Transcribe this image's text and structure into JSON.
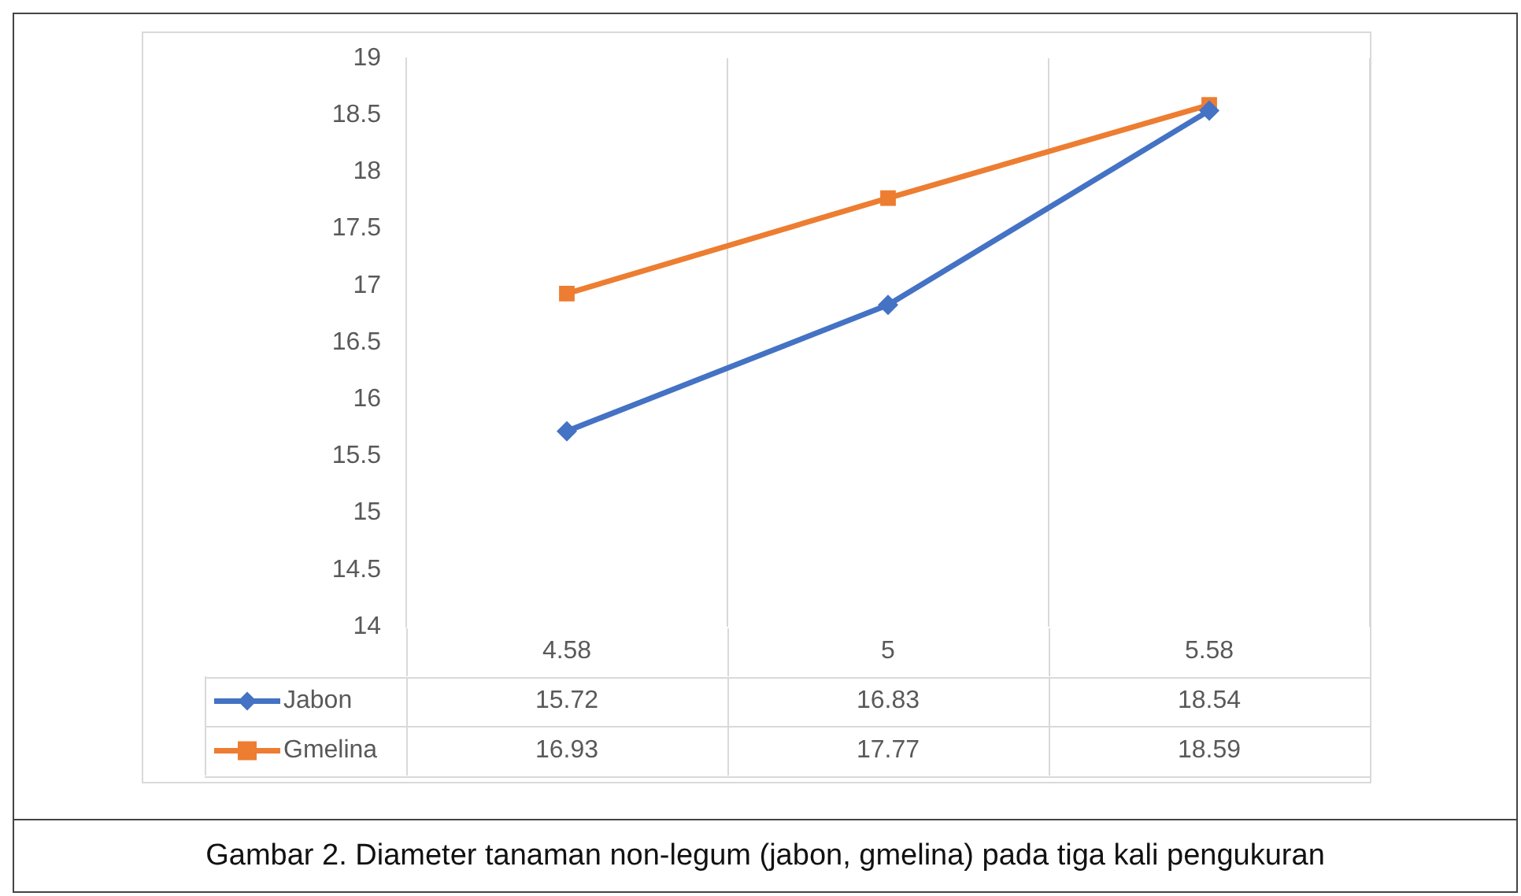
{
  "chart_data": {
    "type": "line",
    "categories": [
      "4.58",
      "5",
      "5.58"
    ],
    "series": [
      {
        "name": "Jabon",
        "color": "#4472c4",
        "values": [
          15.72,
          16.83,
          18.54
        ],
        "marker": "diamond"
      },
      {
        "name": "Gmelina",
        "color": "#ed7d31",
        "values": [
          16.93,
          17.77,
          18.59
        ],
        "marker": "square"
      }
    ],
    "ylim": [
      14,
      19
    ],
    "yticks": [
      14,
      14.5,
      15,
      15.5,
      16,
      16.5,
      17,
      17.5,
      18,
      18.5,
      19
    ],
    "grid": "x",
    "legend": "bottom",
    "data_labels": true,
    "line_style": "solid",
    "annotations": [
      "Gambar 2. Diameter tanaman non-legum (jabon, gmelina) pada tiga kali pengukuran"
    ]
  }
}
